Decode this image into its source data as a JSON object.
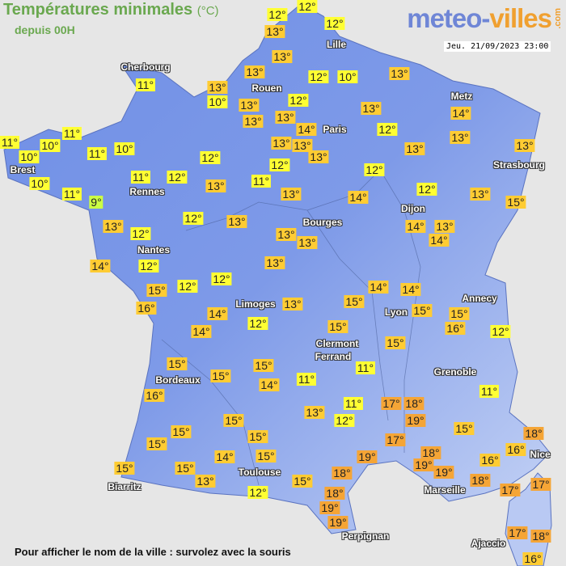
{
  "header": {
    "title": "Températures minimales",
    "unit": "(°C)",
    "subtitle": "depuis 00H",
    "logo_part1": "meteo-",
    "logo_part2": "villes",
    "logo_suffix": ".com",
    "datetime": "Jeu. 21/09/2023 23:00"
  },
  "footer": {
    "hint": "Pour afficher le nom de la ville : survolez avec la souris"
  },
  "colors": {
    "land": "#6f8fe6",
    "land_high": "#c8d6f6",
    "background": "#e6e6e6",
    "cold": "#ccff44",
    "cool": "#ffff33",
    "mild": "#ffcc33",
    "warm": "#f5a536"
  },
  "cities": [
    "Lille",
    "Cherbourg",
    "Rouen",
    "Metz",
    "Paris",
    "Brest",
    "Strasbourg",
    "Rennes",
    "Dijon",
    "Bourges",
    "Nantes",
    "Annecy",
    "Limoges",
    "Lyon",
    "Clermont",
    "Ferrand",
    "Grenoble",
    "Bordeaux",
    "Nice",
    "Toulouse",
    "Marseille",
    "Biarritz",
    "Perpignan",
    "Ajaccio"
  ],
  "labels": [
    "12°",
    "12°",
    "13°",
    "12°",
    "13°",
    "13°",
    "12°",
    "10°",
    "13°",
    "11°",
    "13°",
    "10°",
    "13°",
    "12°",
    "13°",
    "13°",
    "14°",
    "13°",
    "12°",
    "14°",
    "13°",
    "11°",
    "11°",
    "10°",
    "10°",
    "11°",
    "10°",
    "13°",
    "13°",
    "13°",
    "13°",
    "13°",
    "12°",
    "12°",
    "12°",
    "10°",
    "11°",
    "12°",
    "13°",
    "11°",
    "12°",
    "13°",
    "15°",
    "13°",
    "14°",
    "11°",
    "9°",
    "12°",
    "13°",
    "13°",
    "12°",
    "13°",
    "13°",
    "14°",
    "13°",
    "14°",
    "14°",
    "12°",
    "13°",
    "12°",
    "12°",
    "15°",
    "16°",
    "14°",
    "14°",
    "13°",
    "15°",
    "15°",
    "15°",
    "16°",
    "14°",
    "14°",
    "12°",
    "15°",
    "12°",
    "15°",
    "15°",
    "15°",
    "15°",
    "14°",
    "11°",
    "11°",
    "11°",
    "16°",
    "11°",
    "17°",
    "18°",
    "19°",
    "13°",
    "12°",
    "15°",
    "15°",
    "15°",
    "18°",
    "15°",
    "15°",
    "17°",
    "16°",
    "14°",
    "15°",
    "19°",
    "18°",
    "16°",
    "19°",
    "15°",
    "15°",
    "19°",
    "13°",
    "18°",
    "15°",
    "18°",
    "17°",
    "17°",
    "12°",
    "18°",
    "19°",
    "19°",
    "17°",
    "18°",
    "16°"
  ]
}
